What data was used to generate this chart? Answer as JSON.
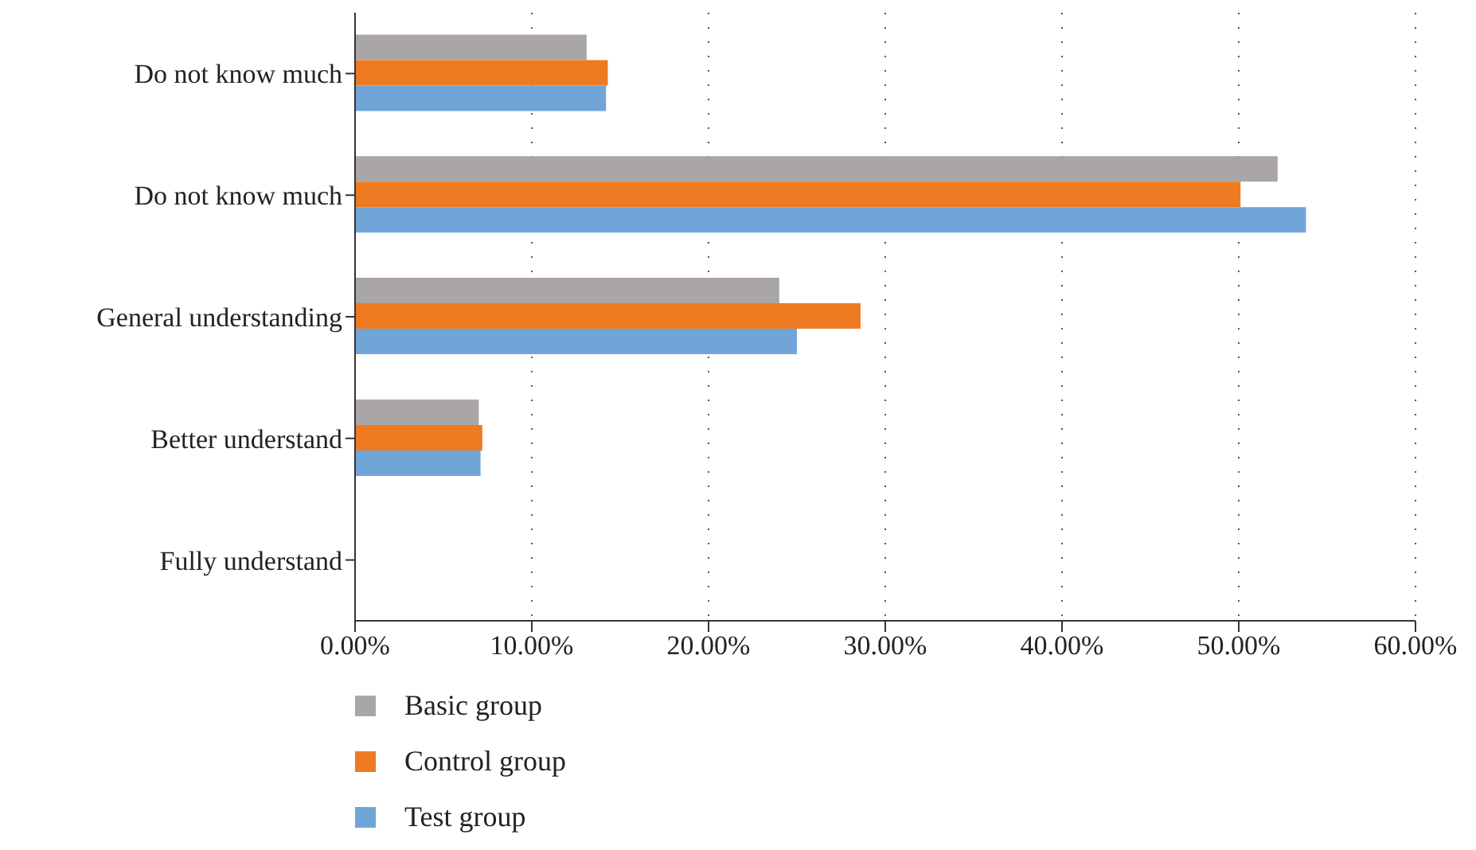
{
  "chart_data": {
    "type": "bar",
    "orientation": "horizontal",
    "categories": [
      "Do not know much",
      "Do not know much",
      "General understanding",
      "Better understand",
      "Fully understand"
    ],
    "series": [
      {
        "name": "Basic group",
        "color": "#aaa6a5",
        "values": [
          13.1,
          52.2,
          24.0,
          7.0,
          0
        ]
      },
      {
        "name": "Control group",
        "color": "#ee7a22",
        "values": [
          14.3,
          50.1,
          28.6,
          7.2,
          0
        ]
      },
      {
        "name": "Test group",
        "color": "#72a5d7",
        "values": [
          14.2,
          53.8,
          25.0,
          7.1,
          0
        ]
      }
    ],
    "xlim": [
      0,
      60
    ],
    "xticks": [
      {
        "value": 0,
        "label": "0.00%"
      },
      {
        "value": 10,
        "label": "10.00%"
      },
      {
        "value": 20,
        "label": "20.00%"
      },
      {
        "value": 30,
        "label": "30.00%"
      },
      {
        "value": 40,
        "label": "40.00%"
      },
      {
        "value": 50,
        "label": "50.00%"
      },
      {
        "value": 60,
        "label": "60.00%"
      }
    ],
    "grid": "x",
    "legend": "bottom left"
  }
}
